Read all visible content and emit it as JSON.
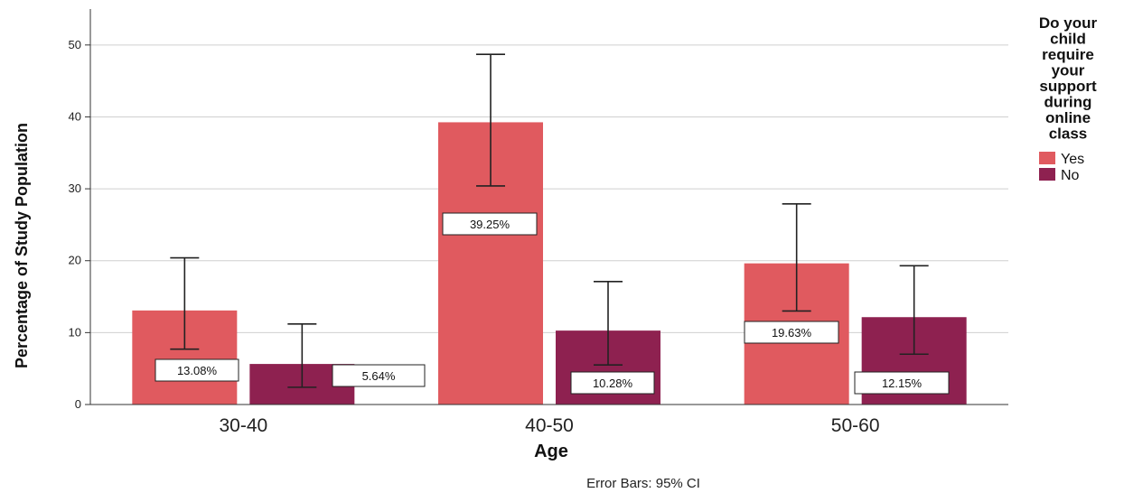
{
  "chart_data": {
    "type": "bar",
    "xlabel": "Age",
    "ylabel": "Percentage of Study Population",
    "categories": [
      "30-40",
      "40-50",
      "50-60"
    ],
    "ylim": [
      0,
      55
    ],
    "yticks": [
      0,
      10,
      20,
      30,
      40,
      50
    ],
    "grid": true,
    "legend_title": "Do your child require your support during online class",
    "legend_position": "right",
    "series": [
      {
        "name": "Yes",
        "color": "#e05a5f",
        "values": [
          13.08,
          39.25,
          19.63
        ],
        "labels": [
          "13.08%",
          "39.25%",
          "19.63%"
        ],
        "ci_low": [
          7.7,
          30.4,
          13.0
        ],
        "ci_high": [
          20.4,
          48.7,
          27.9
        ]
      },
      {
        "name": "No",
        "color": "#8e2150",
        "values": [
          5.64,
          10.28,
          12.15
        ],
        "labels": [
          "5.64%",
          "10.28%",
          "12.15%"
        ],
        "ci_low": [
          2.4,
          5.5,
          7.0
        ],
        "ci_high": [
          11.2,
          17.1,
          19.3
        ]
      }
    ],
    "footnote": "Error Bars: 95% CI"
  }
}
